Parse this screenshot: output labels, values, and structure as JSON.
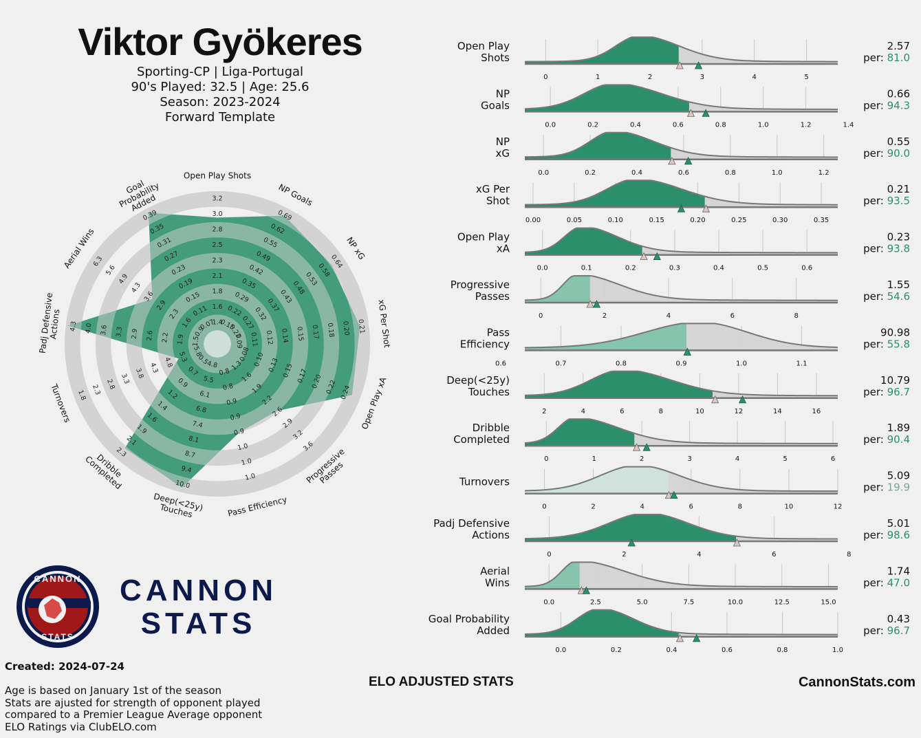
{
  "player": {
    "name": "Viktor Gyökeres",
    "line1": "Sporting-CP | Liga-Portugal",
    "line2": "90's Played: 32.5 | Age: 25.6",
    "line3": "Season: 2023-2024",
    "line4": "Forward Template"
  },
  "brand": {
    "logo_top": "CANNON",
    "logo_bottom": "STATS",
    "word1": "CANNON",
    "word2": "STATS"
  },
  "footer": {
    "created": "Created: 2024-07-24",
    "notes": [
      "Age is based on January 1st of the season",
      "Stats are ajusted for strength of opponent played",
      "compared to a Premier League Average opponent",
      "ELO Ratings via ClubELO.com"
    ],
    "center": "ELO ADJUSTED STATS",
    "site": "CannonStats.com"
  },
  "colors": {
    "accent": "#2a8f6a",
    "light_accent": "#86c4ad",
    "pale_accent": "#cfe3dc",
    "grey": "#d3d3d3",
    "navy": "#0b1a4a",
    "red": "#a01818"
  },
  "chart_data": [
    {
      "type": "radar",
      "metrics": [
        {
          "label": "Open Play Shots",
          "ticks": [
            "1.4",
            "1.6",
            "1.8",
            "2.1",
            "2.3",
            "2.5",
            "2.8",
            "3.0",
            "3.2"
          ],
          "percentile": 81.0
        },
        {
          "label": "NP Goals",
          "ticks": [
            "0.15",
            "0.22",
            "0.29",
            "0.35",
            "0.42",
            "0.49",
            "0.55",
            "0.62",
            "0.69"
          ],
          "percentile": 94.3
        },
        {
          "label": "NP xG",
          "ticks": [
            "0.22",
            "0.27",
            "0.32",
            "0.37",
            "0.43",
            "0.48",
            "0.53",
            "0.58",
            "0.64"
          ],
          "percentile": 90.0
        },
        {
          "label": "xG Per Shot",
          "ticks": [
            "0.09",
            "0.11",
            "0.12",
            "0.14",
            "0.15",
            "0.17",
            "0.18",
            "0.20",
            "0.21"
          ],
          "percentile": 93.5
        },
        {
          "label": "Open Play xA",
          "ticks": [
            "0.08",
            "0.10",
            "0.13",
            "0.15",
            "0.17",
            "0.20",
            "0.22",
            "0.24"
          ],
          "percentile": 93.8
        },
        {
          "label": "Progressive Passes",
          "ticks": [
            "1.3",
            "1.6",
            "1.9",
            "2.2",
            "2.6",
            "2.9",
            "3.2",
            "3.6"
          ],
          "percentile": 54.6
        },
        {
          "label": "Pass Efficiency",
          "ticks": [
            "0.8",
            "0.8",
            "0.9",
            "0.9",
            "0.9",
            "1.0",
            "1.0",
            "1.0"
          ],
          "percentile": 55.8
        },
        {
          "label": "Deep(<25y) Touches",
          "ticks": [
            "4.8",
            "5.5",
            "6.1",
            "6.8",
            "7.4",
            "8.1",
            "8.7",
            "9.4",
            "10.0"
          ],
          "percentile": 96.7
        },
        {
          "label": "Dribble Completed",
          "ticks": [
            "0.5",
            "0.7",
            "0.9",
            "1.2",
            "1.4",
            "1.6",
            "1.9",
            "2.1",
            "2.3"
          ],
          "percentile": 90.4
        },
        {
          "label": "Turnovers",
          "ticks": [
            "5.8",
            "5.3",
            "4.8",
            "4.3",
            "3.8",
            "3.3",
            "2.8",
            "2.3",
            "1.8"
          ],
          "percentile": 19.9
        },
        {
          "label": "Padj Defensive Actions",
          "ticks": [
            "1.5",
            "1.9",
            "2.2",
            "2.6",
            "2.9",
            "3.3",
            "3.6",
            "4.0",
            "4.3"
          ],
          "percentile": 98.6
        },
        {
          "label": "Aerial Wins",
          "ticks": [
            "0.9",
            "1.6",
            "2.3",
            "2.9",
            "3.6",
            "4.3",
            "4.9",
            "5.6",
            "6.3"
          ],
          "percentile": 47.0
        },
        {
          "label": "Goal Probability Added",
          "ticks": [
            "0.07",
            "0.11",
            "0.15",
            "0.19",
            "0.23",
            "0.27",
            "0.31",
            "0.35",
            "0.39"
          ],
          "percentile": 96.7
        }
      ]
    },
    {
      "type": "ridge",
      "series": [
        {
          "name": "Open Play Shots",
          "label": [
            "Open Play",
            "Shots"
          ],
          "value": "2.57",
          "per": "81.0",
          "value_num": 2.57,
          "marker": 2.93,
          "xmin": -0.4,
          "xmax": 5.6,
          "ticks": [
            0,
            1,
            2,
            3,
            4,
            5
          ],
          "tick_labels": [
            "0",
            "1",
            "2",
            "3",
            "4",
            "5"
          ],
          "peak": 1.8,
          "sl": 0.45,
          "sr": 0.75,
          "fill": "dark"
        },
        {
          "name": "NP Goals",
          "label": [
            "NP",
            "Goals"
          ],
          "value": "0.66",
          "per": "94.3",
          "value_num": 0.66,
          "marker": 0.73,
          "xmin": -0.12,
          "xmax": 1.35,
          "ticks": [
            0,
            0.2,
            0.4,
            0.6,
            0.8,
            1.0,
            1.2,
            1.4
          ],
          "tick_labels": [
            "0.0",
            "0.2",
            "0.4",
            "0.6",
            "0.8",
            "1.0",
            "1.2",
            "1.4"
          ],
          "peak": 0.3,
          "sl": 0.14,
          "sr": 0.22,
          "fill": "dark"
        },
        {
          "name": "NP xG",
          "label": [
            "NP",
            "xG"
          ],
          "value": "0.55",
          "per": "90.0",
          "value_num": 0.55,
          "marker": 0.62,
          "xmin": -0.08,
          "xmax": 1.26,
          "ticks": [
            0,
            0.2,
            0.4,
            0.6,
            0.8,
            1.0,
            1.2
          ],
          "tick_labels": [
            "0.0",
            "0.2",
            "0.4",
            "0.6",
            "0.8",
            "1.0",
            "1.2"
          ],
          "peak": 0.3,
          "sl": 0.1,
          "sr": 0.17,
          "fill": "dark"
        },
        {
          "name": "xG Per Shot",
          "label": [
            "xG Per",
            "Shot"
          ],
          "value": "0.21",
          "per": "93.5",
          "value_num": 0.21,
          "marker": 0.18,
          "xmin": -0.01,
          "xmax": 0.37,
          "ticks": [
            0,
            0.05,
            0.1,
            0.15,
            0.2,
            0.25,
            0.3,
            0.35
          ],
          "tick_labels": [
            "0.00",
            "0.05",
            "0.10",
            "0.15",
            "0.20",
            "0.25",
            "0.30",
            "0.35"
          ],
          "peak": 0.125,
          "sl": 0.035,
          "sr": 0.055,
          "fill": "dark"
        },
        {
          "name": "Open Play xA",
          "label": [
            "Open Play",
            "xA"
          ],
          "value": "0.23",
          "per": "93.8",
          "value_num": 0.23,
          "marker": 0.26,
          "xmin": -0.04,
          "xmax": 0.67,
          "ticks": [
            0,
            0.1,
            0.2,
            0.3,
            0.4,
            0.5,
            0.6
          ],
          "tick_labels": [
            "0.0",
            "0.1",
            "0.2",
            "0.3",
            "0.4",
            "0.5",
            "0.6"
          ],
          "peak": 0.09,
          "sl": 0.04,
          "sr": 0.08,
          "fill": "dark"
        },
        {
          "name": "Progressive Passes",
          "label": [
            "Progressive",
            "Passes"
          ],
          "value": "1.55",
          "per": "54.6",
          "value_num": 1.55,
          "marker": 1.75,
          "xmin": -0.5,
          "xmax": 9.3,
          "ticks": [
            0,
            2,
            4,
            6,
            8
          ],
          "tick_labels": [
            "0",
            "2",
            "4",
            "6",
            "8"
          ],
          "peak": 1.15,
          "sl": 0.45,
          "sr": 1.3,
          "fill": "light"
        },
        {
          "name": "Pass Efficiency",
          "label": [
            "Pass",
            "Efficiency"
          ],
          "value": "90.98",
          "per": "55.8",
          "value_num": 0.91,
          "marker": 0.91,
          "xmin": 0.64,
          "xmax": 1.16,
          "ticks": [
            0.6,
            0.7,
            0.8,
            0.9,
            1.0,
            1.1
          ],
          "tick_labels": [
            "0.6",
            "0.7",
            "0.8",
            "0.9",
            "1.0",
            "1.1"
          ],
          "peak": 0.93,
          "sl": 0.09,
          "sr": 0.08,
          "fill": "light"
        },
        {
          "name": "Deep(<25y) Touches",
          "label": [
            "Deep(<25y)",
            "Touches"
          ],
          "value": "10.79",
          "per": "96.7",
          "value_num": 10.79,
          "marker": 12.2,
          "xmin": 1.0,
          "xmax": 17.1,
          "ticks": [
            2,
            4,
            6,
            8,
            10,
            12,
            14,
            16
          ],
          "tick_labels": [
            "2",
            "4",
            "6",
            "8",
            "10",
            "12",
            "14",
            "16"
          ],
          "peak": 6.0,
          "sl": 1.6,
          "sr": 2.5,
          "fill": "dark"
        },
        {
          "name": "Dribble Completed",
          "label": [
            "Dribble",
            "Completed"
          ],
          "value": "1.89",
          "per": "90.4",
          "value_num": 1.89,
          "marker": 2.1,
          "xmin": -0.45,
          "xmax": 6.1,
          "ticks": [
            0,
            1,
            2,
            3,
            4,
            5,
            6
          ],
          "tick_labels": [
            "0",
            "1",
            "2",
            "3",
            "4",
            "5",
            "6"
          ],
          "peak": 0.6,
          "sl": 0.35,
          "sr": 0.9,
          "fill": "dark"
        },
        {
          "name": "Turnovers",
          "label": [
            "Turnovers"
          ],
          "value": "5.09",
          "per": "19.9",
          "value_num": 5.09,
          "marker": 5.3,
          "xmin": -0.8,
          "xmax": 12.0,
          "ticks": [
            0,
            2,
            4,
            6,
            8,
            10,
            12
          ],
          "tick_labels": [
            "0",
            "2",
            "4",
            "6",
            "8",
            "10",
            "12"
          ],
          "peak": 3.8,
          "sl": 1.5,
          "sr": 1.7,
          "fill": "pale"
        },
        {
          "name": "Padj Defensive Actions",
          "label": [
            "Padj Defensive",
            "Actions"
          ],
          "value": "5.01",
          "per": "98.6",
          "value_num": 5.01,
          "marker": 2.2,
          "xmin": -0.65,
          "xmax": 7.7,
          "ticks": [
            0,
            2,
            4,
            6,
            8
          ],
          "tick_labels": [
            "0",
            "2",
            "4",
            "6",
            "8"
          ],
          "peak": 2.6,
          "sl": 1.0,
          "sr": 1.1,
          "fill": "dark"
        },
        {
          "name": "Aerial Wins",
          "label": [
            "Aerial",
            "Wins"
          ],
          "value": "1.74",
          "per": "47.0",
          "value_num": 1.74,
          "marker": 2.0,
          "xmin": -1.3,
          "xmax": 15.5,
          "ticks": [
            0,
            2.5,
            5,
            7.5,
            10,
            12.5,
            15
          ],
          "tick_labels": [
            "0.0",
            "2.5",
            "5.0",
            "7.5",
            "10.0",
            "12.5",
            "15.0"
          ],
          "peak": 1.5,
          "sl": 0.8,
          "sr": 2.5,
          "fill": "light"
        },
        {
          "name": "Goal Probability Added",
          "label": [
            "Goal Probability",
            "Added"
          ],
          "value": "0.43",
          "per": "96.7",
          "value_num": 0.43,
          "marker": 0.49,
          "xmin": -0.13,
          "xmax": 1.0,
          "ticks": [
            0,
            0.2,
            0.4,
            0.6,
            0.8,
            1.0
          ],
          "tick_labels": [
            "0.0",
            "0.2",
            "0.4",
            "0.6",
            "0.8",
            "1.0"
          ],
          "peak": 0.14,
          "sl": 0.08,
          "sr": 0.12,
          "fill": "dark"
        }
      ]
    }
  ]
}
